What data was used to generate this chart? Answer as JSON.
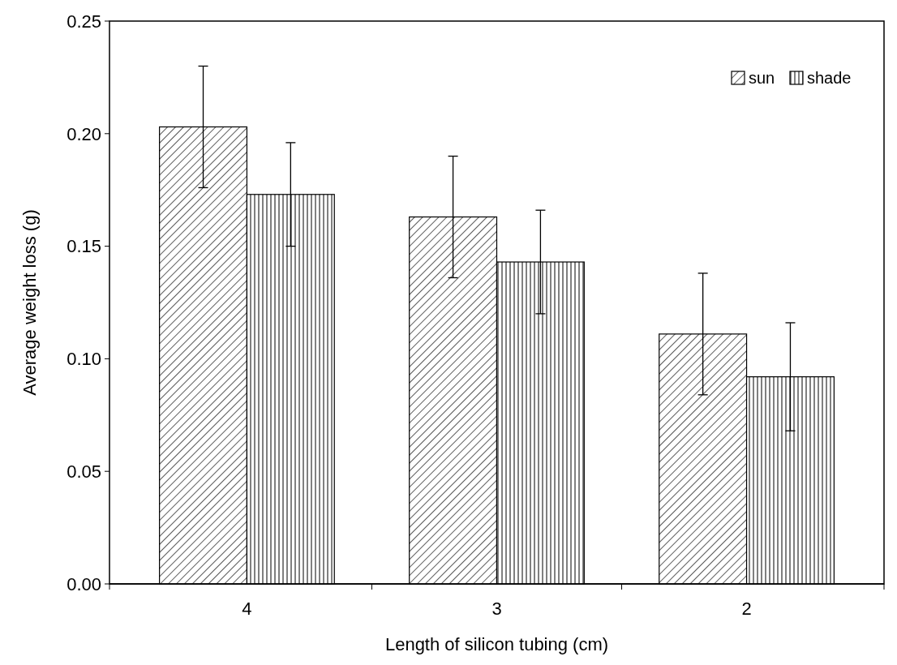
{
  "chart_data": {
    "type": "bar",
    "xlabel": "Length of silicon tubing (cm)",
    "ylabel": "Average weight loss (g)",
    "categories": [
      "4",
      "3",
      "2"
    ],
    "series": [
      {
        "name": "sun",
        "color": "#000000",
        "values": [
          0.203,
          0.163,
          0.111
        ],
        "errors": [
          0.027,
          0.027,
          0.027
        ]
      },
      {
        "name": "shade",
        "color": "#000000",
        "values": [
          0.173,
          0.143,
          0.092
        ],
        "errors": [
          0.023,
          0.023,
          0.024
        ]
      }
    ],
    "ylim": [
      0,
      0.25
    ],
    "yticks": [
      {
        "value": 0,
        "label": "0.00"
      },
      {
        "value": 0.05,
        "label": "0.05"
      },
      {
        "value": 0.1,
        "label": "0.10"
      },
      {
        "value": 0.15,
        "label": "0.15"
      },
      {
        "value": 0.2,
        "label": "0.20"
      },
      {
        "value": 0.25,
        "label": "0.25"
      }
    ],
    "legend": "top right",
    "grid": false
  }
}
